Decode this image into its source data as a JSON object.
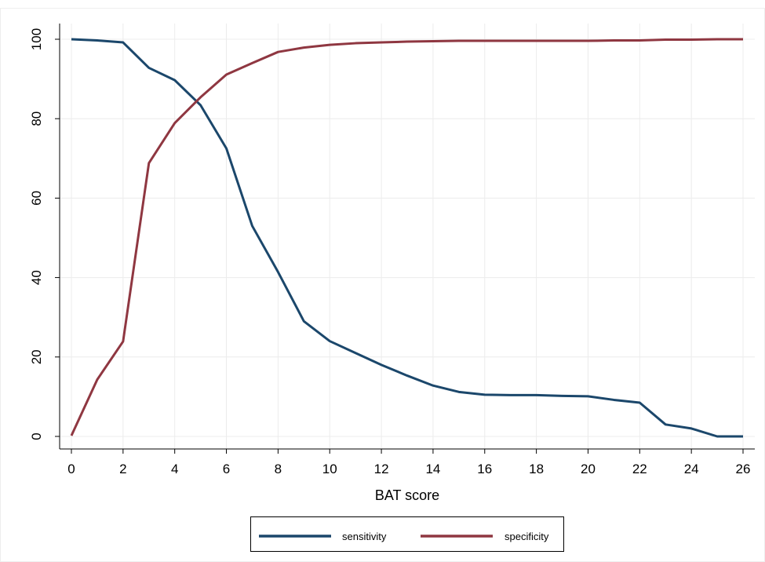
{
  "chart_data": {
    "type": "line",
    "title": "",
    "xlabel": "BAT score",
    "ylabel": "",
    "xlim": [
      0,
      26
    ],
    "ylim": [
      0,
      100
    ],
    "xticks": [
      0,
      2,
      4,
      6,
      8,
      10,
      12,
      14,
      16,
      18,
      20,
      22,
      24,
      26
    ],
    "yticks": [
      0,
      20,
      40,
      60,
      80,
      100
    ],
    "grid": true,
    "legend_position": "bottom",
    "x": [
      0,
      1,
      2,
      3,
      4,
      5,
      6,
      7,
      8,
      9,
      10,
      11,
      12,
      13,
      14,
      15,
      16,
      17,
      18,
      19,
      20,
      21,
      22,
      23,
      24,
      25,
      26
    ],
    "series": [
      {
        "name": "sensitivity",
        "color": "#1b476b",
        "values": [
          100,
          99.7,
          99.2,
          92.8,
          89.7,
          83.4,
          72.5,
          53,
          41.4,
          29,
          24,
          21,
          18,
          15.3,
          12.8,
          11.2,
          10.5,
          10.4,
          10.4,
          10.2,
          10.1,
          9.2,
          8.5,
          3,
          2,
          0,
          0
        ]
      },
      {
        "name": "specificity",
        "color": "#8f3741",
        "values": [
          0.2,
          14.3,
          23.9,
          68.8,
          78.9,
          85.4,
          91.1,
          94,
          96.8,
          97.9,
          98.6,
          99,
          99.2,
          99.4,
          99.5,
          99.6,
          99.6,
          99.6,
          99.6,
          99.6,
          99.6,
          99.7,
          99.7,
          99.9,
          99.9,
          100,
          100
        ]
      }
    ]
  }
}
